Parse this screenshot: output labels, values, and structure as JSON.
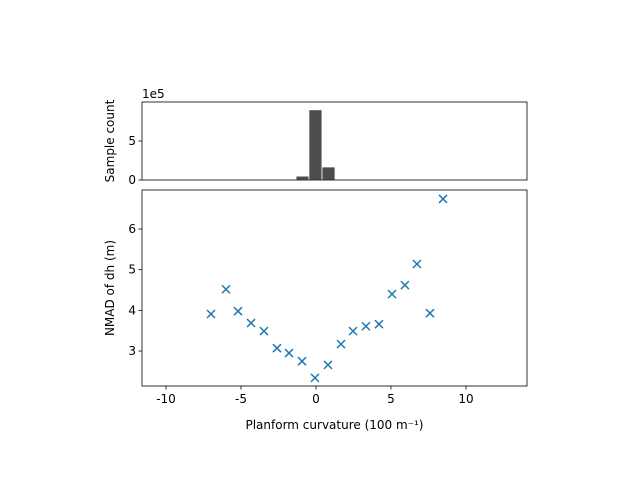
{
  "chart_data": [
    {
      "type": "histogram",
      "ylabel": "Sample count",
      "y_offset_label": "1e5",
      "bins": [
        -1.33,
        -0.47,
        0.4,
        1.27
      ],
      "counts": [
        0.5,
        9.0,
        1.67
      ],
      "color": "#4d4d4d",
      "xlim": [
        -11.6,
        14.07
      ],
      "ylim": [
        0,
        10
      ],
      "yticks": [
        0,
        5
      ]
    },
    {
      "type": "scatter",
      "xlabel": "Planform curvature (100 m⁻¹)",
      "ylabel": "NMAD of dh (m)",
      "x": [
        -7.0,
        -6.0,
        -5.2,
        -4.33,
        -3.47,
        -2.6,
        -1.8,
        -0.93,
        -0.07,
        0.8,
        1.67,
        2.47,
        3.33,
        4.2,
        5.07,
        5.93,
        6.73,
        7.6,
        8.47
      ],
      "values": [
        3.91,
        4.52,
        3.98,
        3.69,
        3.49,
        3.07,
        2.95,
        2.75,
        2.34,
        2.66,
        3.17,
        3.49,
        3.61,
        3.66,
        4.4,
        4.62,
        5.14,
        3.93,
        6.74
      ],
      "color": "#1f77b4",
      "marker": "x",
      "xlim": [
        -11.6,
        14.07
      ],
      "ylim": [
        2.14,
        6.96
      ],
      "xticks": [
        -10,
        -5,
        0,
        5,
        10
      ],
      "yticks": [
        3,
        4,
        5,
        6
      ]
    }
  ]
}
